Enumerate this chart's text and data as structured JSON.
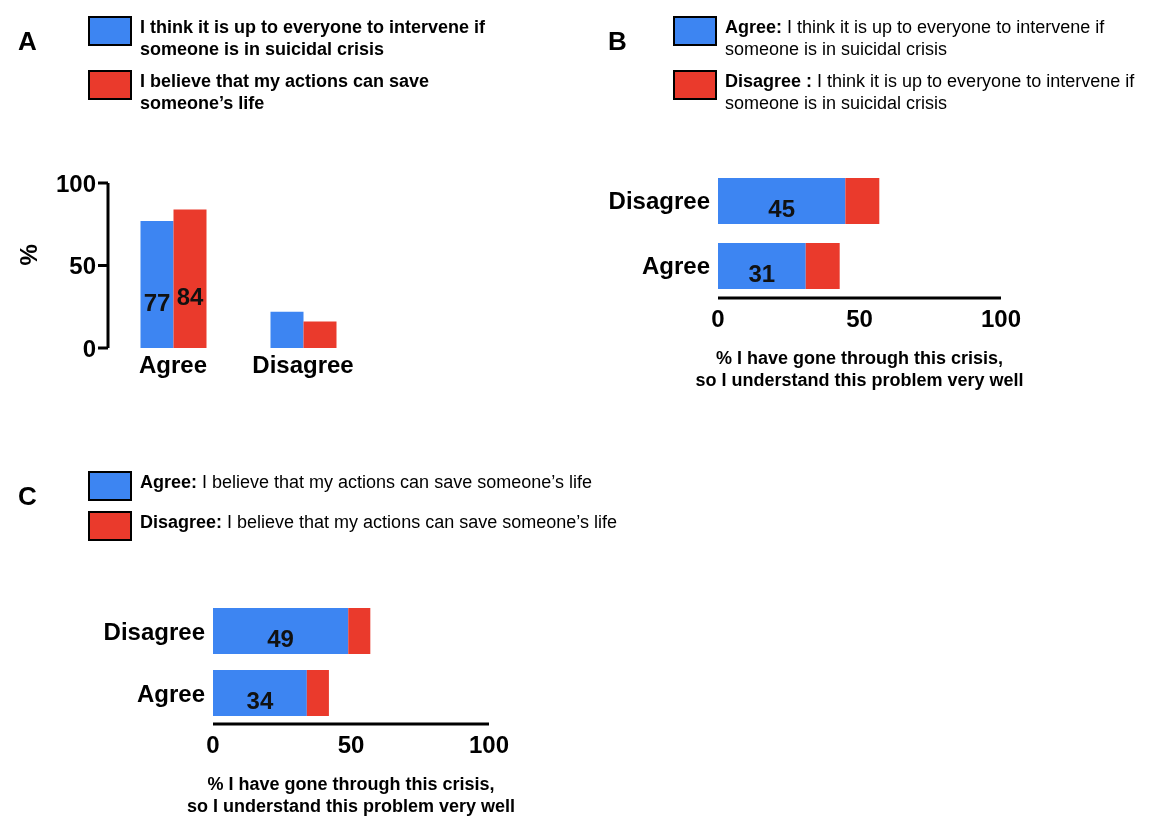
{
  "chart_data": [
    {
      "type": "bar",
      "title": "A",
      "ylabel": "%",
      "categories": [
        "Agree",
        "Disagree"
      ],
      "ylim": [
        0,
        100
      ],
      "yticks": [
        0,
        50,
        100
      ],
      "grid": false,
      "legend": "top",
      "series": [
        {
          "name": "I think it is up to everyone to intervene if someone is in suicidal crisis",
          "color": "#3d85f2",
          "values": [
            77,
            22
          ],
          "value_labels": [
            "77",
            null
          ]
        },
        {
          "name": "I believe that my actions can save someone’s life",
          "color": "#ea3a2c",
          "values": [
            84,
            16
          ],
          "value_labels": [
            "84",
            null
          ]
        }
      ]
    },
    {
      "type": "bar",
      "title": "B",
      "orientation": "horizontal",
      "stacked": true,
      "categories": [
        "Disagree",
        "Agree"
      ],
      "xlim": [
        0,
        100
      ],
      "xticks": [
        0,
        50,
        100
      ],
      "xlabel": "%  I have gone through this crisis,\nso I understand this problem very well",
      "grid": false,
      "legend": "top",
      "series": [
        {
          "name": "Agree:  I think it is up to everyone to intervene if someone is in suicidal crisis",
          "color": "#3d85f2",
          "values": [
            45,
            31
          ],
          "value_labels": [
            "45",
            "31"
          ]
        },
        {
          "name": "Disagree :  I think it is up to everyone to intervene if someone is in suicidal crisis",
          "color": "#ea3a2c",
          "values": [
            12,
            12
          ]
        }
      ]
    },
    {
      "type": "bar",
      "title": "C",
      "orientation": "horizontal",
      "stacked": true,
      "categories": [
        "Disagree",
        "Agree"
      ],
      "xlim": [
        0,
        100
      ],
      "xticks": [
        0,
        50,
        100
      ],
      "xlabel": "%  I have gone through this crisis,\nso I understand this problem very well",
      "grid": false,
      "legend": "top",
      "series": [
        {
          "name": "Agree: I believe that my actions can save someone’s life",
          "color": "#3d85f2",
          "values": [
            49,
            34
          ],
          "value_labels": [
            "49",
            "34"
          ]
        },
        {
          "name": "Disagree: I believe that my actions can save someone’s life",
          "color": "#ea3a2c",
          "values": [
            8,
            8
          ]
        }
      ]
    }
  ]
}
